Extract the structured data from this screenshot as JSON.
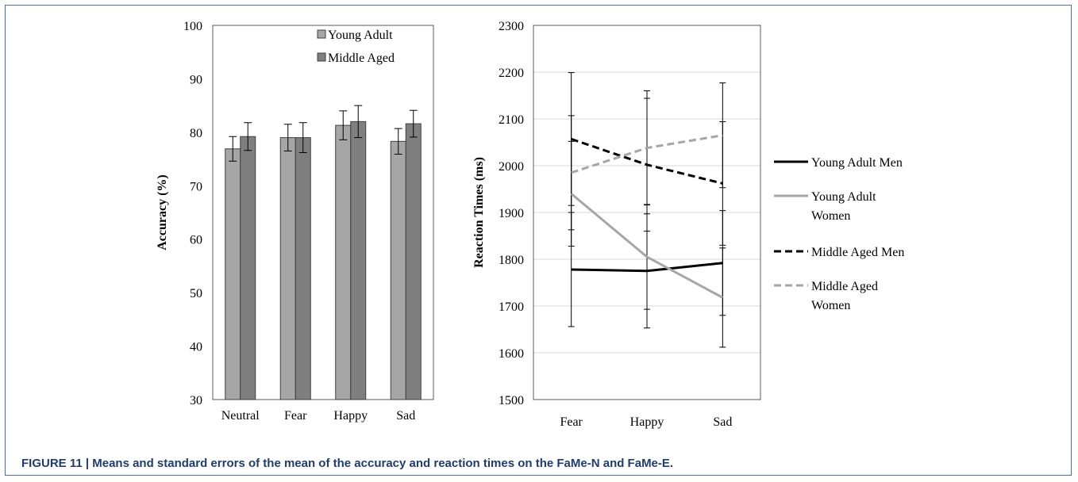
{
  "caption": {
    "number": "FIGURE 11 |",
    "text": "Means and standard errors of the mean of the accuracy and reaction times on the FaMe-N and FaMe-E."
  },
  "chart_data": [
    {
      "type": "bar",
      "ylabel": "Accuracy (%)",
      "ylim": [
        30,
        100
      ],
      "yticks": [
        30,
        40,
        50,
        60,
        70,
        80,
        90,
        100
      ],
      "grid": false,
      "legend": "top-right",
      "categories": [
        "Neutral",
        "Fear",
        "Happy",
        "Sad"
      ],
      "series": [
        {
          "name": "Young Adult",
          "color": "#a6a6a6",
          "values": [
            76.9,
            79.0,
            81.3,
            78.3
          ],
          "errors": [
            2.3,
            2.5,
            2.7,
            2.4
          ]
        },
        {
          "name": "Middle Aged",
          "color": "#7f7f7f",
          "values": [
            79.2,
            79.0,
            82.0,
            81.6
          ],
          "errors": [
            2.6,
            2.8,
            3.0,
            2.5
          ]
        }
      ]
    },
    {
      "type": "line",
      "ylabel": "Reaction Times (ms)",
      "ylim": [
        1500,
        2300
      ],
      "yticks": [
        1500,
        1600,
        1700,
        1800,
        1900,
        2000,
        2100,
        2200,
        2300
      ],
      "grid": true,
      "legend": "right",
      "categories": [
        "Fear",
        "Happy",
        "Sad"
      ],
      "series": [
        {
          "name": "Young Adult Men",
          "legend_lines": [
            "Young Adult Men"
          ],
          "color": "#000000",
          "dashed": false,
          "values": [
            1778,
            1775,
            1792
          ],
          "errors": [
            122,
            122,
            112
          ]
        },
        {
          "name": "Young Adult Women",
          "legend_lines": [
            "Young Adult",
            "Women"
          ],
          "color": "#a6a6a6",
          "dashed": false,
          "values": [
            1940,
            1805,
            1718
          ],
          "errors": [
            112,
            112,
            106
          ]
        },
        {
          "name": "Middle Aged Men",
          "legend_lines": [
            "Middle Aged Men"
          ],
          "color": "#000000",
          "dashed": true,
          "values": [
            2057,
            2002,
            1962
          ],
          "errors": [
            142,
            142,
            132
          ]
        },
        {
          "name": "Middle Aged Women",
          "legend_lines": [
            "Middle Aged",
            "Women"
          ],
          "color": "#a6a6a6",
          "dashed": true,
          "values": [
            1985,
            2038,
            2065
          ],
          "errors": [
            122,
            122,
            112
          ]
        }
      ]
    }
  ]
}
